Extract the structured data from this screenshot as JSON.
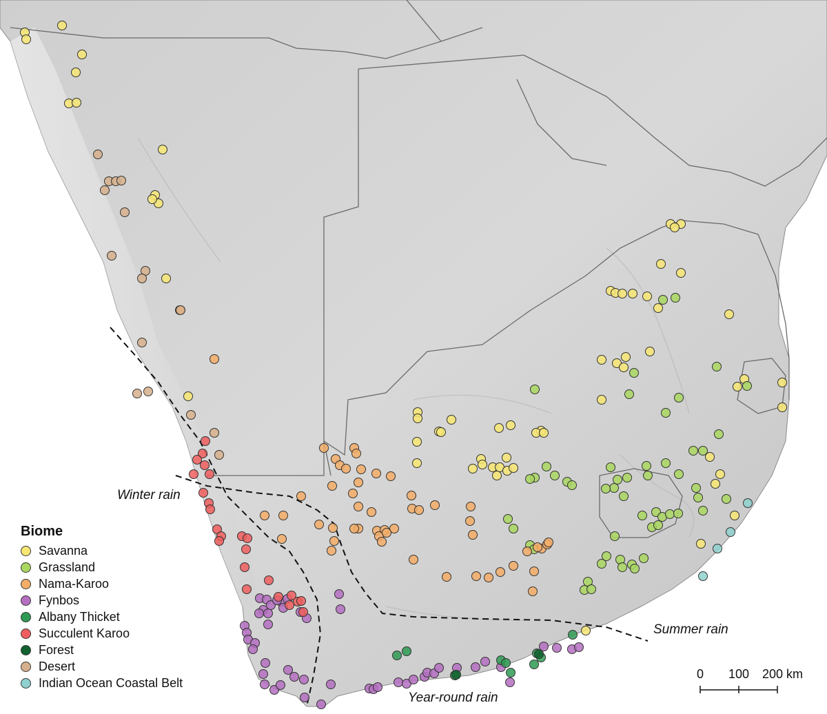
{
  "colors": {
    "savanna": "#f7e673",
    "grassland": "#a9d75f",
    "nama_karoo": "#f3ad67",
    "fynbos": "#b46fc1",
    "albany_thicket": "#2f9a53",
    "succulent_karoo": "#ef5e5e",
    "forest": "#11622e",
    "desert": "#d6b08c",
    "indian_ocean": "#8fd1cf"
  },
  "legend": {
    "title": "Biome",
    "items": [
      {
        "label": "Savanna",
        "color_key": "savanna"
      },
      {
        "label": "Grassland",
        "color_key": "grassland"
      },
      {
        "label": "Nama-Karoo",
        "color_key": "nama_karoo"
      },
      {
        "label": "Fynbos",
        "color_key": "fynbos"
      },
      {
        "label": "Albany Thicket",
        "color_key": "albany_thicket"
      },
      {
        "label": "Succulent Karoo",
        "color_key": "succulent_karoo"
      },
      {
        "label": "Forest",
        "color_key": "forest"
      },
      {
        "label": "Desert",
        "color_key": "desert"
      },
      {
        "label": "Indian Ocean Coastal Belt",
        "color_key": "indian_ocean"
      }
    ]
  },
  "rain_zones": {
    "winter": "Winter rain",
    "summer": "Summer rain",
    "year_round": "Year-round rain"
  },
  "scale": {
    "ticks": [
      "0",
      "100",
      "200 km"
    ]
  }
}
